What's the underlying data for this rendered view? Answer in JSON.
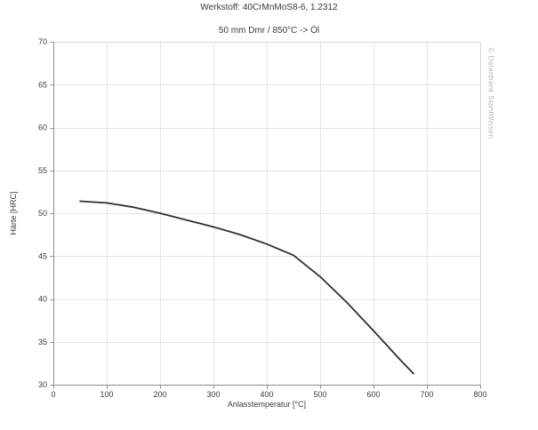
{
  "header": {
    "title": "Werkstoff: 40CrMnMoS8-6, 1.2312",
    "subtitle": "50 mm Dmr / 850°C -> Öl"
  },
  "watermark": {
    "text": "© Datenbank StahlWissen",
    "color": "#b4b4b4"
  },
  "chart_data": {
    "type": "line",
    "title": "Werkstoff: 40CrMnMoS8-6, 1.2312",
    "subtitle": "50 mm Dmr / 850°C -> Öl",
    "xlabel": "Anlasstemperatur [°C]",
    "ylabel": "Härte [HRC]",
    "xlim": [
      0,
      800
    ],
    "ylim": [
      30,
      70
    ],
    "xticks": [
      0,
      100,
      200,
      300,
      400,
      500,
      600,
      700,
      800
    ],
    "yticks": [
      30,
      35,
      40,
      45,
      50,
      55,
      60,
      65,
      70
    ],
    "grid": true,
    "legend_position": "none",
    "series": [
      {
        "name": "Anlasskurve (Härte über Anlasstemperatur)",
        "color": "#2f2f2f",
        "x": [
          50,
          100,
          150,
          200,
          250,
          300,
          350,
          400,
          450,
          500,
          550,
          600,
          650,
          675
        ],
        "y": [
          51.4,
          51.2,
          50.7,
          50.0,
          49.2,
          48.4,
          47.5,
          46.4,
          45.1,
          42.6,
          39.6,
          36.3,
          32.9,
          31.3
        ]
      }
    ],
    "colors": {
      "grid": "#e4e4e4",
      "axis": "#8c8c8c",
      "frame": "#d9d9d9",
      "tick_label": "#3c3c3c",
      "background": "#ffffff"
    }
  }
}
